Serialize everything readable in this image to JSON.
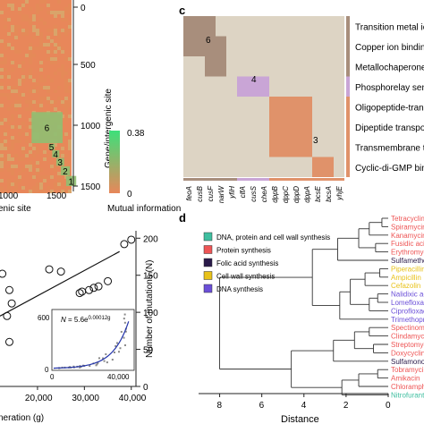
{
  "panel_labels": {
    "c": "c",
    "d": "d"
  },
  "colors": {
    "heatmap_base": "#e8875a",
    "heatmap_green": "#8fbf72",
    "heatmap_cell_light": "#ddd4c4",
    "heatmap_brown": "#a88e7c",
    "heatmap_lilac": "#c9a5d6",
    "heatmap_orange": "#e0926a",
    "colorbar_high": "#3de07a",
    "colorbar_low": "#e8875a",
    "scatter_line": "#111111",
    "inset_fit": "#2233aa"
  },
  "panel_a": {
    "y_axis_label": "Gene/intergenic site",
    "y_ticks": [
      "0",
      "500",
      "1000",
      "1500"
    ],
    "x_ticks": [
      "1000",
      "1500"
    ],
    "x_label_fragment": "enic site",
    "cluster_labels": [
      "6",
      "5",
      "4",
      "3",
      "2",
      "1"
    ],
    "colorbar": {
      "max_label": "0.38",
      "min_label": "0",
      "title": "Mutual information"
    }
  },
  "panel_b": {
    "y_axis_label": "Number of mutations (N)",
    "y_ticks": [
      "0",
      "50",
      "100",
      "150",
      "200"
    ],
    "x_ticks": [
      "20,000",
      "30,000",
      "40,000"
    ],
    "x_label_fragment": "neration (g)",
    "inset": {
      "equation_prefix": "N",
      "equation_body": " = 5.6e",
      "equation_exponent": "0.00012g",
      "y_ticks": [
        "0",
        "600"
      ],
      "x_ticks": [
        "0",
        "40,000"
      ]
    }
  },
  "panel_c": {
    "categories": [
      "Transition metal ion",
      "Copper ion binding",
      "Metallochaperone ac",
      "Phosphorelay sensc",
      "Oligopeptide-transpo",
      "Dipeptide transporte",
      "Transmembrane trac",
      "Cyclic-di-GMP bindin"
    ],
    "genes": [
      "feoA",
      "cusB",
      "cusF",
      "narW",
      "yfiH",
      "clfA",
      "cusS",
      "cheA",
      "dppB",
      "dppC",
      "dppD",
      "dppA",
      "bcsE",
      "bcsA",
      "yhjE"
    ],
    "block_labels": [
      "6",
      "4",
      "3"
    ]
  },
  "panel_d": {
    "legend": [
      {
        "label": "DNA, protein and cell wall synthesis",
        "color": "#3fbfa0"
      },
      {
        "label": "Protein synthesis",
        "color": "#ee5555"
      },
      {
        "label": "Folic acid synthesis",
        "color": "#2a1a4a"
      },
      {
        "label": "Cell wall synthesis",
        "color": "#e8c21a"
      },
      {
        "label": "DNA synthesis",
        "color": "#6b4fd8"
      }
    ],
    "leaves": [
      {
        "label": "Tetracycline",
        "color": "#ee5555"
      },
      {
        "label": "Spiramycin",
        "color": "#ee5555"
      },
      {
        "label": "Kanamycin",
        "color": "#ee5555"
      },
      {
        "label": "Fusidic acid",
        "color": "#ee5555"
      },
      {
        "label": "Erythromycin",
        "color": "#ee5555"
      },
      {
        "label": "Sulfamethox",
        "color": "#2a1a4a"
      },
      {
        "label": "Piperacillin",
        "color": "#e8c21a"
      },
      {
        "label": "Ampicillin",
        "color": "#e8c21a"
      },
      {
        "label": "Cefazolin",
        "color": "#e8c21a"
      },
      {
        "label": "Nalidixic acid",
        "color": "#6b4fd8"
      },
      {
        "label": "Lomefloxacin",
        "color": "#6b4fd8"
      },
      {
        "label": "Ciprofloxacin",
        "color": "#6b4fd8"
      },
      {
        "label": "Trimethoprim",
        "color": "#6b4fd8"
      },
      {
        "label": "Spectinomy",
        "color": "#ee5555"
      },
      {
        "label": "Clindamycin",
        "color": "#ee5555"
      },
      {
        "label": "Streptomycin",
        "color": "#ee5555"
      },
      {
        "label": "Doxycycline",
        "color": "#ee5555"
      },
      {
        "label": "Sulfamonom",
        "color": "#2a1a4a"
      },
      {
        "label": "Tobramycin",
        "color": "#ee5555"
      },
      {
        "label": "Amikacin",
        "color": "#ee5555"
      },
      {
        "label": "Chloramphe",
        "color": "#ee5555"
      },
      {
        "label": "Nitrofuranto",
        "color": "#3fbfa0"
      }
    ],
    "x_ticks": [
      "8",
      "6",
      "4",
      "2",
      "0"
    ],
    "x_label": "Distance"
  },
  "chart_data": [
    {
      "type": "heatmap",
      "title": "",
      "ylabel": "Gene/intergenic site",
      "xlabel": "",
      "ylim": [
        0,
        1500
      ],
      "clusters": [
        {
          "label": "6",
          "range": [
            880,
            1140
          ]
        },
        {
          "label": "5",
          "range": [
            1145,
            1195
          ]
        },
        {
          "label": "4",
          "range": [
            1200,
            1260
          ]
        },
        {
          "label": "3",
          "range": [
            1265,
            1330
          ]
        },
        {
          "label": "2",
          "range": [
            1335,
            1410
          ]
        },
        {
          "label": "1",
          "range": [
            1415,
            1500
          ]
        }
      ],
      "colorbar": {
        "min": 0,
        "max": 0.38,
        "label": "Mutual information"
      }
    },
    {
      "type": "scatter",
      "title": "",
      "ylabel": "Number of mutations (N)",
      "xlabel": "",
      "xlim": [
        12000,
        41000
      ],
      "ylim": [
        0,
        210
      ],
      "series": [
        {
          "values": [
            {
              "x": 12500,
              "y": 152
            },
            {
              "x": 14000,
              "y": 130
            },
            {
              "x": 14500,
              "y": 112
            },
            {
              "x": 13500,
              "y": 95
            },
            {
              "x": 14000,
              "y": 60
            },
            {
              "x": 22500,
              "y": 158
            },
            {
              "x": 25000,
              "y": 155
            },
            {
              "x": 29000,
              "y": 126
            },
            {
              "x": 29500,
              "y": 128
            },
            {
              "x": 31000,
              "y": 130
            },
            {
              "x": 32000,
              "y": 133
            },
            {
              "x": 33000,
              "y": 135
            },
            {
              "x": 35000,
              "y": 142
            },
            {
              "x": 38500,
              "y": 192
            },
            {
              "x": 40000,
              "y": 198
            }
          ]
        }
      ],
      "trend_line": [
        {
          "x": 12000,
          "y": 95
        },
        {
          "x": 37500,
          "y": 182
        }
      ],
      "inset": {
        "type": "scatter",
        "equation": "N = 5.6e^(0.00012g)",
        "xlim": [
          0,
          42000
        ],
        "ylim": [
          0,
          800
        ],
        "fit": {
          "a": 5.6,
          "b": 0.00012
        }
      }
    },
    {
      "type": "heatmap",
      "title": "",
      "rows": [
        "Transition metal ion",
        "Copper ion binding",
        "Metallochaperone ac",
        "Phosphorelay sensc",
        "Oligopeptide-transpo",
        "Dipeptide transporte",
        "Transmembrane trac",
        "Cyclic-di-GMP bindin"
      ],
      "columns": [
        "feoA",
        "cusB",
        "cusF",
        "narW",
        "yfiH",
        "clfA",
        "cusS",
        "cheA",
        "dppB",
        "dppC",
        "dppD",
        "dppA",
        "bcsE",
        "bcsA",
        "yhjE"
      ]
    },
    {
      "type": "dendrogram",
      "title": "",
      "xlabel": "Distance",
      "xlim": [
        9,
        0
      ]
    }
  ]
}
